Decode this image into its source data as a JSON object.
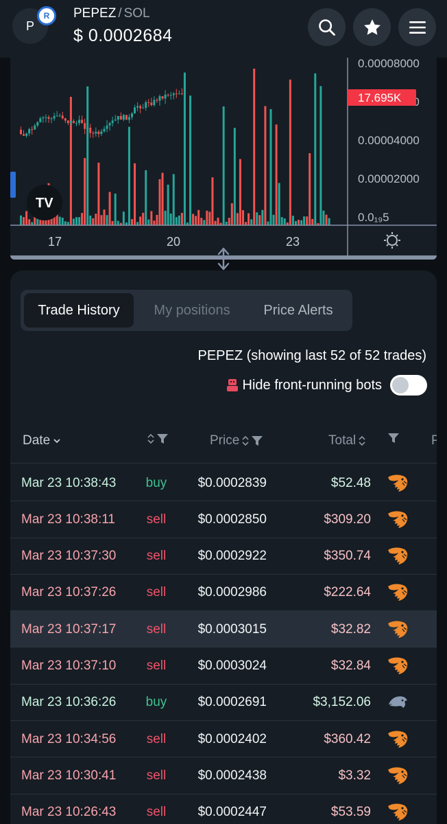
{
  "header": {
    "avatar_letter": "P",
    "chain_badge": "R",
    "base_symbol": "PEPEZ",
    "separator": "/",
    "quote_symbol": "SOL",
    "price": "$ 0.0002684",
    "buttons": [
      "search-icon",
      "star-icon",
      "menu-icon"
    ]
  },
  "chart": {
    "y_labels": [
      "0.00008000",
      "0.00006000",
      "0.00004000",
      "0.00002000",
      "0.0₁₉5"
    ],
    "last_value_badge": "17.695K",
    "x_labels": [
      "17",
      "20",
      "23"
    ],
    "logo_text": "TV",
    "colors": {
      "up": "#26a69a",
      "down": "#ef5350",
      "badge": "#f23645"
    }
  },
  "tabs": [
    {
      "label": "Trade History",
      "state": "active"
    },
    {
      "label": "My positions",
      "state": "disabled"
    },
    {
      "label": "Price Alerts",
      "state": "normal"
    }
  ],
  "summary": "PEPEZ (showing last 52 of 52 trades)",
  "bots_toggle": {
    "label": "Hide front-running bots",
    "on": false
  },
  "columns": {
    "date": "Date",
    "price": "Price",
    "total": "Total",
    "next": "P"
  },
  "trades": [
    {
      "date": "Mar 23 10:38:43",
      "side": "buy",
      "price": "$0.0002839",
      "total": "$52.48",
      "icon": "shrimp-icon"
    },
    {
      "date": "Mar 23 10:38:11",
      "side": "sell",
      "price": "$0.0002850",
      "total": "$309.20",
      "icon": "shrimp-icon"
    },
    {
      "date": "Mar 23 10:37:30",
      "side": "sell",
      "price": "$0.0002922",
      "total": "$350.74",
      "icon": "shrimp-icon"
    },
    {
      "date": "Mar 23 10:37:26",
      "side": "sell",
      "price": "$0.0002986",
      "total": "$222.64",
      "icon": "shrimp-icon"
    },
    {
      "date": "Mar 23 10:37:17",
      "side": "sell",
      "price": "$0.0003015",
      "total": "$32.82",
      "icon": "shrimp-icon",
      "highlight": true
    },
    {
      "date": "Mar 23 10:37:10",
      "side": "sell",
      "price": "$0.0003024",
      "total": "$32.84",
      "icon": "shrimp-icon"
    },
    {
      "date": "Mar 23 10:36:26",
      "side": "buy",
      "price": "$0.0002691",
      "total": "$3,152.06",
      "icon": "dolphin-icon"
    },
    {
      "date": "Mar 23 10:34:56",
      "side": "sell",
      "price": "$0.0002402",
      "total": "$360.42",
      "icon": "shrimp-icon"
    },
    {
      "date": "Mar 23 10:30:41",
      "side": "sell",
      "price": "$0.0002438",
      "total": "$3.32",
      "icon": "shrimp-icon"
    },
    {
      "date": "Mar 23 10:26:43",
      "side": "sell",
      "price": "$0.0002447",
      "total": "$53.59",
      "icon": "shrimp-icon"
    }
  ]
}
